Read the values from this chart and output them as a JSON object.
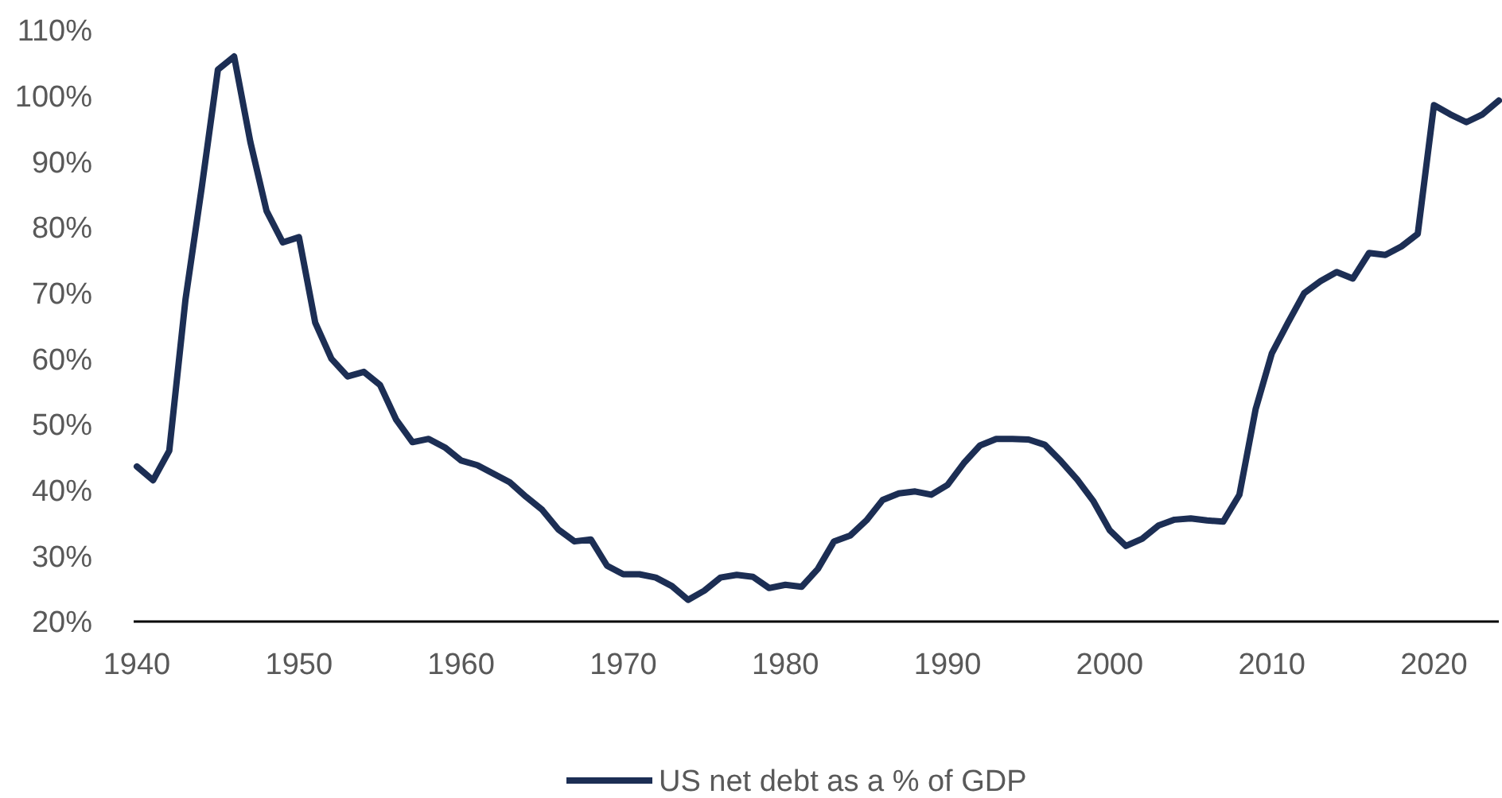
{
  "chart_data": {
    "type": "line",
    "x": [
      1940,
      1941,
      1942,
      1943,
      1944,
      1945,
      1946,
      1947,
      1948,
      1949,
      1950,
      1951,
      1952,
      1953,
      1954,
      1955,
      1956,
      1957,
      1958,
      1959,
      1960,
      1961,
      1962,
      1963,
      1964,
      1965,
      1966,
      1967,
      1968,
      1969,
      1970,
      1971,
      1972,
      1973,
      1974,
      1975,
      1976,
      1977,
      1978,
      1979,
      1980,
      1981,
      1982,
      1983,
      1984,
      1985,
      1986,
      1987,
      1988,
      1989,
      1990,
      1991,
      1992,
      1993,
      1994,
      1995,
      1996,
      1997,
      1998,
      1999,
      2000,
      2001,
      2002,
      2003,
      2004,
      2005,
      2006,
      2007,
      2008,
      2009,
      2010,
      2011,
      2012,
      2013,
      2014,
      2015,
      2016,
      2017,
      2018,
      2019,
      2020,
      2021,
      2022,
      2023,
      2024
    ],
    "series": [
      {
        "name": "US net debt as a % of GDP",
        "color": "#1c2e54",
        "values": [
          43.6,
          41.5,
          46,
          69,
          86,
          104,
          106,
          93,
          82.5,
          77.7,
          78.5,
          65.5,
          60,
          57.3,
          58,
          56,
          50.7,
          47.3,
          47.8,
          46.5,
          44.5,
          43.8,
          42.5,
          41.2,
          39,
          37,
          34,
          32.2,
          32.5,
          28.5,
          27.2,
          27.2,
          26.7,
          25.4,
          23.3,
          24.7,
          26.7,
          27.1,
          26.8,
          25.1,
          25.6,
          25.3,
          28,
          32.2,
          33.1,
          35.4,
          38.5,
          39.5,
          39.8,
          39.3,
          40.8,
          44.1,
          46.8,
          47.8,
          47.8,
          47.7,
          46.9,
          44.4,
          41.6,
          38.3,
          33.9,
          31.5,
          32.6,
          34.6,
          35.5,
          35.7,
          35.4,
          35.2,
          39.3,
          52.3,
          60.8,
          65.5,
          70,
          71.8,
          73.2,
          72.2,
          76.1,
          75.8,
          77.1,
          79,
          98.6,
          97.2,
          96,
          97.2,
          99.3
        ]
      }
    ],
    "xlim": [
      1940,
      2024
    ],
    "xticks": [
      1940,
      1950,
      1960,
      1970,
      1980,
      1990,
      2000,
      2010,
      2020
    ],
    "ylim": [
      20,
      110
    ],
    "yticks": [
      {
        "value": 20,
        "label": "20%"
      },
      {
        "value": 30,
        "label": "30%"
      },
      {
        "value": 40,
        "label": "40%"
      },
      {
        "value": 50,
        "label": "50%"
      },
      {
        "value": 60,
        "label": "60%"
      },
      {
        "value": 70,
        "label": "70%"
      },
      {
        "value": 80,
        "label": "80%"
      },
      {
        "value": 90,
        "label": "90%"
      },
      {
        "value": 100,
        "label": "100%"
      },
      {
        "value": 110,
        "label": "110%"
      }
    ],
    "grid": false,
    "legend": "bottom",
    "marker": "none",
    "line_style": "solid"
  }
}
